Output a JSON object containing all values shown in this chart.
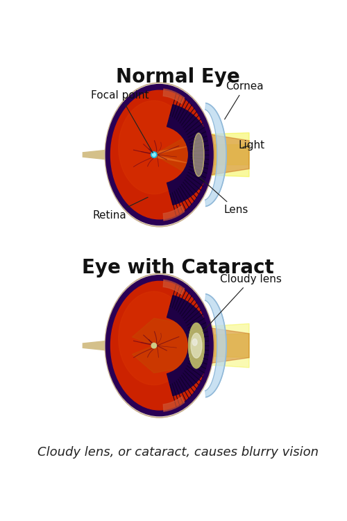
{
  "title1": "Normal Eye",
  "title2": "Eye with Cataract",
  "caption": "Cloudy lens, or cataract, causes blurry vision",
  "labels_normal": {
    "focal_point": "Focal point",
    "cornea": "Cornea",
    "light": "Light",
    "lens": "Lens",
    "retina": "Retina"
  },
  "labels_cataract": {
    "cloudy_lens": "Cloudy lens"
  },
  "bg_color": "#ffffff",
  "title_fontsize": 20,
  "label_fontsize": 11,
  "caption_fontsize": 13
}
